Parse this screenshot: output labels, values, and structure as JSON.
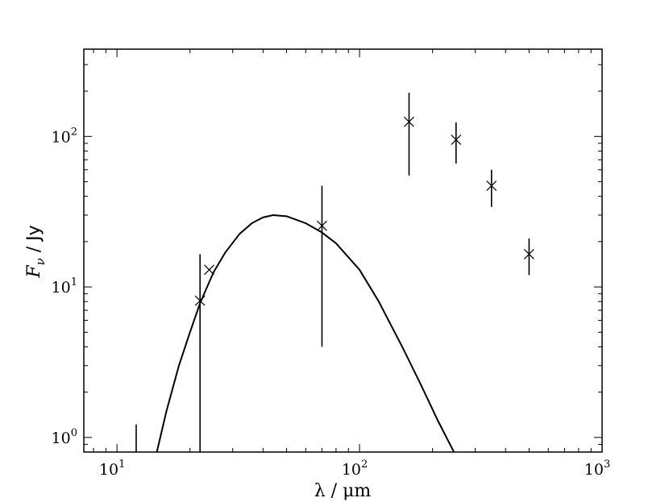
{
  "chart_data": {
    "type": "scatter",
    "x_scale": "log",
    "y_scale": "log",
    "xlim": [
      7.3,
      1000
    ],
    "ylim": [
      0.8,
      380
    ],
    "xlabel": "λ / μm",
    "ylabel_math": "F",
    "ylabel_subscript": "ν",
    "ylabel_text": " / Jy",
    "x_ticks": [
      {
        "value": 10,
        "label_base": "10",
        "label_exp": "1"
      },
      {
        "value": 100,
        "label_base": "10",
        "label_exp": "2"
      },
      {
        "value": 1000,
        "label_base": "10",
        "label_exp": "3"
      }
    ],
    "y_ticks": [
      {
        "value": 1,
        "label_base": "10",
        "label_exp": "0"
      },
      {
        "value": 10,
        "label_base": "10",
        "label_exp": "1"
      },
      {
        "value": 100,
        "label_base": "10",
        "label_exp": "2"
      }
    ],
    "grid": false,
    "legend": "none",
    "series": [
      {
        "type": "scatter",
        "marker": "x",
        "points": [
          {
            "x": 12,
            "y": null,
            "yerr_low": 0.8,
            "yerr_high": 1.22
          },
          {
            "x": 22,
            "y": 8.1,
            "yerr_low": 0.8,
            "yerr_high": 16.5
          },
          {
            "x": 24,
            "y": 13.0,
            "yerr_low": null,
            "yerr_high": null
          },
          {
            "x": 70,
            "y": 25.5,
            "yerr_low": 4.0,
            "yerr_high": 47.0
          },
          {
            "x": 160,
            "y": 125,
            "yerr_low": 55,
            "yerr_high": 195
          },
          {
            "x": 250,
            "y": 95,
            "yerr_low": 66,
            "yerr_high": 124
          },
          {
            "x": 350,
            "y": 47,
            "yerr_low": 34,
            "yerr_high": 60
          },
          {
            "x": 500,
            "y": 16.5,
            "yerr_low": 12,
            "yerr_high": 21
          }
        ]
      },
      {
        "type": "line",
        "points": [
          {
            "x": 14.6,
            "y": 0.8
          },
          {
            "x": 16,
            "y": 1.5
          },
          {
            "x": 18,
            "y": 3.0
          },
          {
            "x": 20,
            "y": 5.0
          },
          {
            "x": 22,
            "y": 7.8
          },
          {
            "x": 25,
            "y": 12.5
          },
          {
            "x": 28,
            "y": 17.0
          },
          {
            "x": 32,
            "y": 22.5
          },
          {
            "x": 36,
            "y": 26.5
          },
          {
            "x": 40,
            "y": 29.0
          },
          {
            "x": 44,
            "y": 30.0
          },
          {
            "x": 50,
            "y": 29.5
          },
          {
            "x": 60,
            "y": 26.5
          },
          {
            "x": 70,
            "y": 23.0
          },
          {
            "x": 80,
            "y": 19.5
          },
          {
            "x": 100,
            "y": 13.0
          },
          {
            "x": 120,
            "y": 8.0
          },
          {
            "x": 150,
            "y": 4.0
          },
          {
            "x": 180,
            "y": 2.2
          },
          {
            "x": 210,
            "y": 1.3
          },
          {
            "x": 245,
            "y": 0.8
          }
        ]
      }
    ]
  }
}
